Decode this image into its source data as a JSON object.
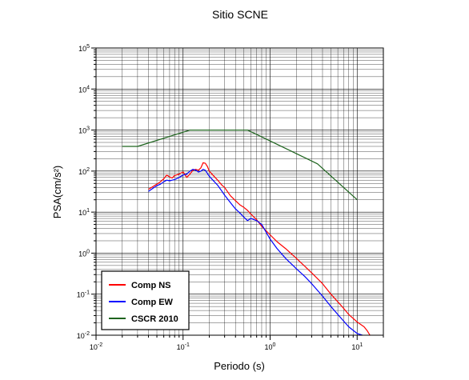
{
  "chart_data": {
    "type": "line",
    "title": "Sitio SCNE",
    "xlabel": "Periodo (s)",
    "ylabel": "PSA(cm/s²)",
    "xscale": "log",
    "yscale": "log",
    "xlim": [
      0.01,
      20
    ],
    "ylim": [
      0.01,
      100000
    ],
    "x_ticks": [
      {
        "value": 0.01,
        "base": "10",
        "exp": "-2"
      },
      {
        "value": 0.1,
        "base": "10",
        "exp": "-1"
      },
      {
        "value": 1,
        "base": "10",
        "exp": "0"
      },
      {
        "value": 10,
        "base": "10",
        "exp": "1"
      }
    ],
    "y_ticks": [
      {
        "value": 0.01,
        "base": "10",
        "exp": "-2"
      },
      {
        "value": 0.1,
        "base": "10",
        "exp": "-1"
      },
      {
        "value": 1,
        "base": "10",
        "exp": "0"
      },
      {
        "value": 10,
        "base": "10",
        "exp": "1"
      },
      {
        "value": 100,
        "base": "10",
        "exp": "2"
      },
      {
        "value": 1000,
        "base": "10",
        "exp": "3"
      },
      {
        "value": 10000,
        "base": "10",
        "exp": "4"
      },
      {
        "value": 100000,
        "base": "10",
        "exp": "5"
      }
    ],
    "grid": true,
    "legend_position": "bottom-left",
    "series": [
      {
        "name": "Comp NS",
        "color": "#ff0000",
        "x": [
          0.04,
          0.045,
          0.05,
          0.055,
          0.06,
          0.065,
          0.07,
          0.075,
          0.08,
          0.09,
          0.1,
          0.11,
          0.12,
          0.13,
          0.14,
          0.15,
          0.16,
          0.17,
          0.18,
          0.19,
          0.2,
          0.22,
          0.25,
          0.28,
          0.3,
          0.35,
          0.4,
          0.45,
          0.5,
          0.55,
          0.6,
          0.7,
          0.8,
          1.0,
          1.2,
          1.5,
          2.0,
          2.5,
          3.0,
          4.0,
          5.0,
          6.0,
          7.0,
          8.0,
          10.0,
          12.0,
          13.0,
          14.0
        ],
        "y": [
          36,
          42,
          48,
          55,
          65,
          80,
          72,
          68,
          78,
          85,
          95,
          70,
          85,
          105,
          110,
          105,
          120,
          160,
          155,
          130,
          100,
          80,
          60,
          45,
          40,
          25,
          19,
          15,
          13,
          11,
          9,
          6.5,
          4.5,
          2.8,
          1.9,
          1.3,
          0.75,
          0.48,
          0.33,
          0.18,
          0.1,
          0.065,
          0.045,
          0.032,
          0.021,
          0.016,
          0.013,
          0.01
        ]
      },
      {
        "name": "Comp EW",
        "color": "#0000ff",
        "x": [
          0.04,
          0.045,
          0.05,
          0.055,
          0.06,
          0.065,
          0.07,
          0.075,
          0.08,
          0.09,
          0.1,
          0.11,
          0.12,
          0.13,
          0.14,
          0.15,
          0.16,
          0.17,
          0.18,
          0.2,
          0.22,
          0.25,
          0.28,
          0.3,
          0.35,
          0.4,
          0.45,
          0.5,
          0.55,
          0.6,
          0.7,
          0.8,
          1.0,
          1.2,
          1.5,
          2.0,
          2.5,
          3.0,
          4.0,
          5.0,
          6.0,
          7.0,
          8.0,
          10.0,
          11.5
        ],
        "y": [
          32,
          38,
          44,
          48,
          55,
          60,
          58,
          60,
          62,
          70,
          80,
          85,
          100,
          110,
          105,
          95,
          100,
          110,
          105,
          75,
          60,
          45,
          32,
          26,
          17,
          12,
          9.5,
          7.5,
          6.2,
          7.0,
          6.2,
          5.0,
          2.2,
          1.3,
          0.75,
          0.42,
          0.27,
          0.18,
          0.09,
          0.05,
          0.032,
          0.022,
          0.016,
          0.011,
          0.01
        ]
      },
      {
        "name": "CSCR 2010",
        "color": "#1e641e",
        "x": [
          0.02,
          0.03,
          0.12,
          0.55,
          3.5,
          10.0
        ],
        "y": [
          400,
          400,
          1000,
          1000,
          150,
          20
        ]
      }
    ]
  }
}
